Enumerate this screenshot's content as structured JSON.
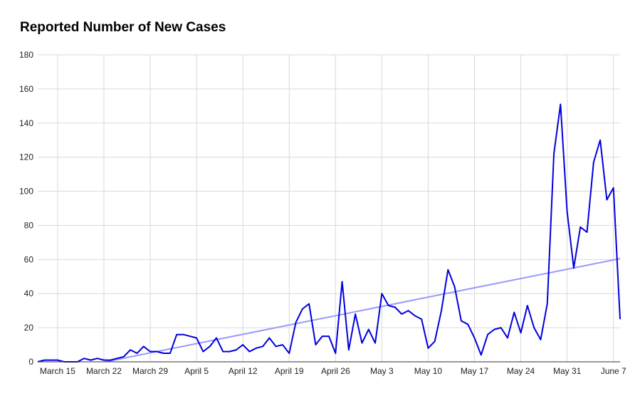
{
  "chart_data": {
    "type": "line",
    "title": "Reported Number of New Cases",
    "xlabel": "",
    "ylabel": "",
    "x_start": "2020-03-12",
    "x_end": "2020-06-08",
    "x_ticks": [
      {
        "date": "2020-03-15",
        "label": "March 15"
      },
      {
        "date": "2020-03-22",
        "label": "March 22"
      },
      {
        "date": "2020-03-29",
        "label": "March 29"
      },
      {
        "date": "2020-04-05",
        "label": "April 5"
      },
      {
        "date": "2020-04-12",
        "label": "April 12"
      },
      {
        "date": "2020-04-19",
        "label": "April 19"
      },
      {
        "date": "2020-04-26",
        "label": "April 26"
      },
      {
        "date": "2020-05-03",
        "label": "May 3"
      },
      {
        "date": "2020-05-10",
        "label": "May 10"
      },
      {
        "date": "2020-05-17",
        "label": "May 17"
      },
      {
        "date": "2020-05-24",
        "label": "May 24"
      },
      {
        "date": "2020-05-31",
        "label": "May 31"
      },
      {
        "date": "2020-06-07",
        "label": "June 7"
      }
    ],
    "y_ticks": [
      0,
      20,
      40,
      60,
      80,
      100,
      120,
      140,
      160,
      180
    ],
    "ylim": [
      0,
      180
    ],
    "grid": true,
    "legend": "none",
    "series": [
      {
        "color": "#0000dd",
        "points": [
          [
            "2020-03-12",
            0
          ],
          [
            "2020-03-13",
            1
          ],
          [
            "2020-03-14",
            1
          ],
          [
            "2020-03-15",
            1
          ],
          [
            "2020-03-16",
            0
          ],
          [
            "2020-03-17",
            0
          ],
          [
            "2020-03-18",
            0
          ],
          [
            "2020-03-19",
            2
          ],
          [
            "2020-03-20",
            1
          ],
          [
            "2020-03-21",
            2
          ],
          [
            "2020-03-22",
            1
          ],
          [
            "2020-03-23",
            1
          ],
          [
            "2020-03-24",
            2
          ],
          [
            "2020-03-25",
            3
          ],
          [
            "2020-03-26",
            7
          ],
          [
            "2020-03-27",
            5
          ],
          [
            "2020-03-28",
            9
          ],
          [
            "2020-03-29",
            6
          ],
          [
            "2020-03-30",
            6
          ],
          [
            "2020-03-31",
            5
          ],
          [
            "2020-04-01",
            5
          ],
          [
            "2020-04-02",
            16
          ],
          [
            "2020-04-03",
            16
          ],
          [
            "2020-04-04",
            15
          ],
          [
            "2020-04-05",
            14
          ],
          [
            "2020-04-06",
            6
          ],
          [
            "2020-04-07",
            9
          ],
          [
            "2020-04-08",
            14
          ],
          [
            "2020-04-09",
            6
          ],
          [
            "2020-04-10",
            6
          ],
          [
            "2020-04-11",
            7
          ],
          [
            "2020-04-12",
            10
          ],
          [
            "2020-04-13",
            6
          ],
          [
            "2020-04-14",
            8
          ],
          [
            "2020-04-15",
            9
          ],
          [
            "2020-04-16",
            14
          ],
          [
            "2020-04-17",
            9
          ],
          [
            "2020-04-18",
            10
          ],
          [
            "2020-04-19",
            5
          ],
          [
            "2020-04-20",
            23
          ],
          [
            "2020-04-21",
            31
          ],
          [
            "2020-04-22",
            34
          ],
          [
            "2020-04-23",
            10
          ],
          [
            "2020-04-24",
            15
          ],
          [
            "2020-04-25",
            15
          ],
          [
            "2020-04-26",
            5
          ],
          [
            "2020-04-27",
            47
          ],
          [
            "2020-04-28",
            7
          ],
          [
            "2020-04-29",
            28
          ],
          [
            "2020-04-30",
            11
          ],
          [
            "2020-05-01",
            19
          ],
          [
            "2020-05-02",
            11
          ],
          [
            "2020-05-03",
            40
          ],
          [
            "2020-05-04",
            33
          ],
          [
            "2020-05-05",
            32
          ],
          [
            "2020-05-06",
            28
          ],
          [
            "2020-05-07",
            30
          ],
          [
            "2020-05-08",
            27
          ],
          [
            "2020-05-09",
            25
          ],
          [
            "2020-05-10",
            8
          ],
          [
            "2020-05-11",
            12
          ],
          [
            "2020-05-12",
            30
          ],
          [
            "2020-05-13",
            54
          ],
          [
            "2020-05-14",
            44
          ],
          [
            "2020-05-15",
            24
          ],
          [
            "2020-05-16",
            22
          ],
          [
            "2020-05-17",
            14
          ],
          [
            "2020-05-18",
            4
          ],
          [
            "2020-05-19",
            16
          ],
          [
            "2020-05-20",
            19
          ],
          [
            "2020-05-21",
            20
          ],
          [
            "2020-05-22",
            14
          ],
          [
            "2020-05-23",
            29
          ],
          [
            "2020-05-24",
            17
          ],
          [
            "2020-05-25",
            33
          ],
          [
            "2020-05-26",
            20
          ],
          [
            "2020-05-27",
            13
          ],
          [
            "2020-05-28",
            34
          ],
          [
            "2020-05-29",
            122
          ],
          [
            "2020-05-30",
            151
          ],
          [
            "2020-05-31",
            88
          ],
          [
            "2020-06-01",
            55
          ],
          [
            "2020-06-02",
            79
          ],
          [
            "2020-06-03",
            76
          ],
          [
            "2020-06-04",
            117
          ],
          [
            "2020-06-05",
            130
          ],
          [
            "2020-06-06",
            95
          ],
          [
            "2020-06-07",
            102
          ],
          [
            "2020-06-08",
            25
          ]
        ]
      }
    ],
    "trendline": {
      "color": "#9999ff",
      "type": "linear",
      "points": [
        [
          "2020-03-12",
          -8
        ],
        [
          "2020-06-08",
          60.5
        ]
      ]
    }
  }
}
